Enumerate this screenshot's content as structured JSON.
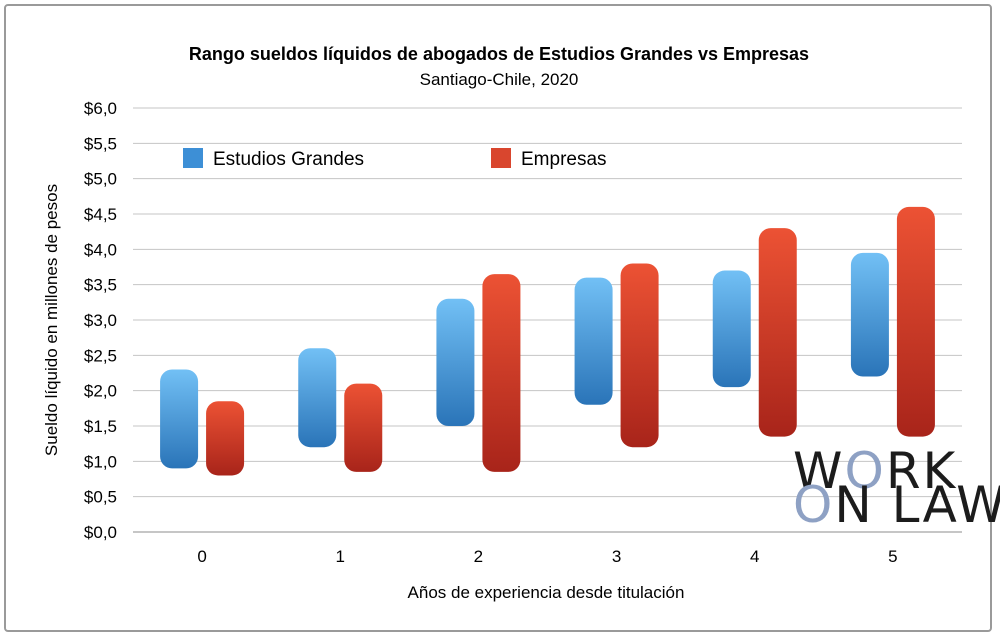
{
  "chart_data": {
    "type": "bar",
    "title": "Rango sueldos líquidos de abogados de Estudios Grandes vs Empresas",
    "subtitle": "Santiago-Chile,  2020",
    "xlabel": "Años de experiencia desde titulación",
    "ylabel": "Sueldo líquido en millones de pesos",
    "categories": [
      "0",
      "1",
      "2",
      "3",
      "4",
      "5"
    ],
    "y_ticks": [
      "$0,0",
      "$0,5",
      "$1,0",
      "$1,5",
      "$2,0",
      "$2,5",
      "$3,0",
      "$3,5",
      "$4,0",
      "$4,5",
      "$5,0",
      "$5,5",
      "$6,0"
    ],
    "ylim": [
      0,
      6
    ],
    "grid": true,
    "legend_position": "top-left",
    "series": [
      {
        "name": "Estudios Grandes",
        "color": "#3d8fd6",
        "ranges": [
          [
            0.9,
            2.3
          ],
          [
            1.2,
            2.6
          ],
          [
            1.5,
            3.3
          ],
          [
            1.8,
            3.6
          ],
          [
            2.05,
            3.7
          ],
          [
            2.2,
            3.95
          ]
        ]
      },
      {
        "name": "Empresas",
        "color": "#d9462e",
        "ranges": [
          [
            0.8,
            1.85
          ],
          [
            0.85,
            2.1
          ],
          [
            0.85,
            3.65
          ],
          [
            1.2,
            3.8
          ],
          [
            1.35,
            4.3
          ],
          [
            1.35,
            4.6
          ]
        ]
      }
    ]
  },
  "logo": {
    "line1_a": "W",
    "line1_o": "O",
    "line1_b": "RK",
    "line2_o": "O",
    "line2_b": "N LAW"
  }
}
